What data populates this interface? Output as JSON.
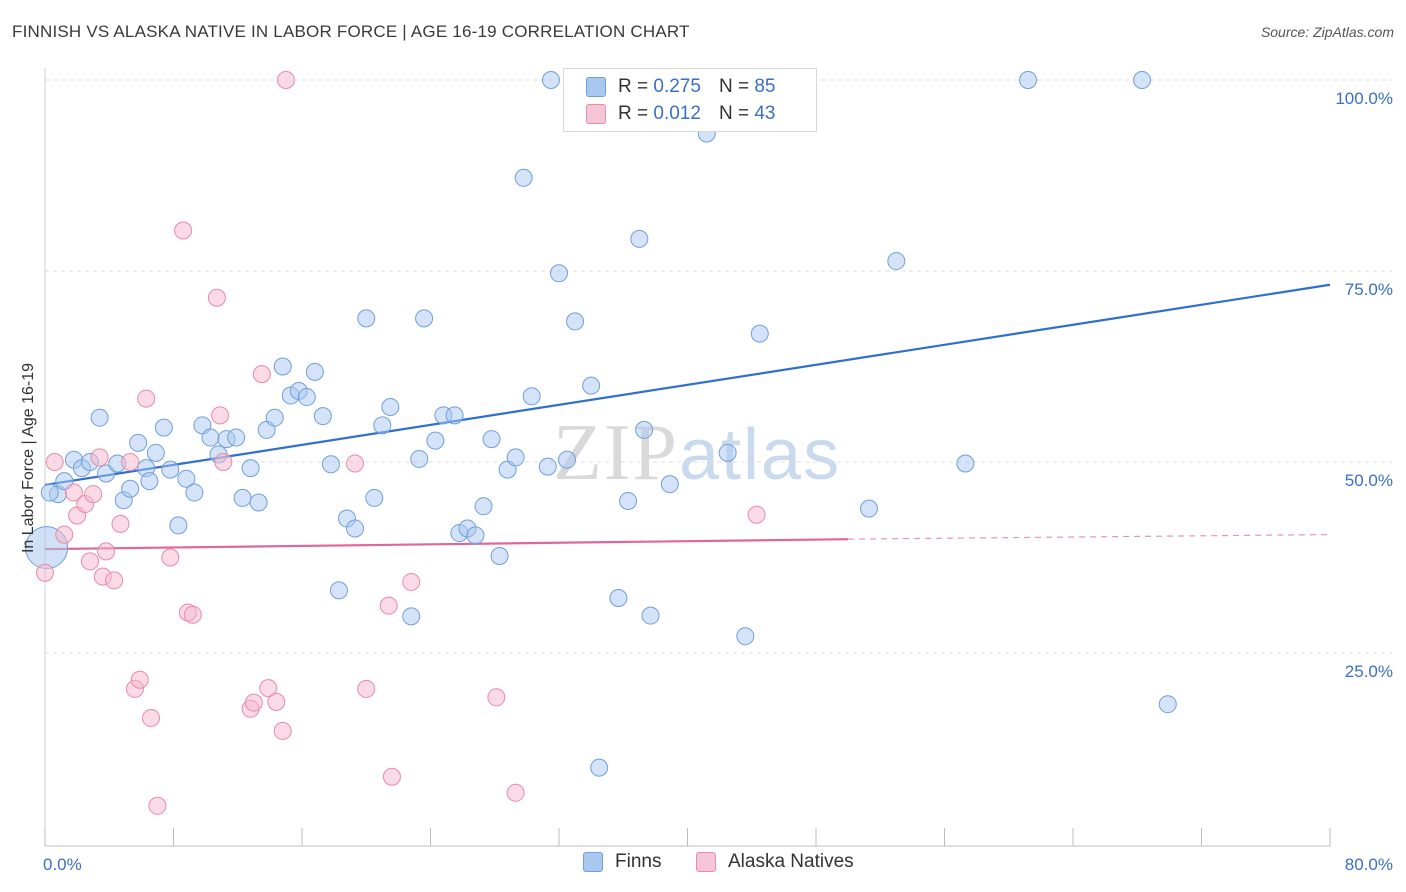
{
  "title": "FINNISH VS ALASKA NATIVE IN LABOR FORCE | AGE 16-19 CORRELATION CHART",
  "source": "Source: ZipAtlas.com",
  "watermark": {
    "zip": "ZIP",
    "atlas": "atlas"
  },
  "legend": {
    "finns": {
      "r_label": "R =",
      "r_value": "0.275",
      "n_label": "N =",
      "n_value": "85"
    },
    "alaska": {
      "r_label": "R =",
      "r_value": "0.012",
      "n_label": "N =",
      "n_value": "43"
    }
  },
  "bottom_legend": {
    "finns": "Finns",
    "alaska": "Alaska Natives"
  },
  "colors": {
    "finns_fill": "#a9c8ef",
    "finns_stroke": "#6f9fdc",
    "finns_line": "#2f6fcf",
    "alaska_fill": "#f5b8cc",
    "alaska_stroke": "#e88aa8",
    "alaska_line": "#e0679a",
    "label": "#3a6fc7",
    "grid": "#dddddd"
  },
  "chart_data": {
    "type": "scatter",
    "title": "FINNISH VS ALASKA NATIVE IN LABOR FORCE | AGE 16-19 CORRELATION CHART",
    "xlabel": "",
    "ylabel": "In Labor Force | Age 16-19",
    "xlim": [
      0,
      80
    ],
    "ylim": [
      0,
      102
    ],
    "x_tick_labels": [
      "0.0%",
      "80.0%"
    ],
    "y_ticks": [
      25,
      50,
      75,
      100
    ],
    "y_tick_labels": [
      "25.0%",
      "50.0%",
      "75.0%",
      "100.0%"
    ],
    "grid": true,
    "series": [
      {
        "name": "Finns",
        "points": [
          [
            0.8,
            45.8
          ],
          [
            1.2,
            47.5
          ],
          [
            1.8,
            50.3
          ],
          [
            2.3,
            49.2
          ],
          [
            2.8,
            50.0
          ],
          [
            3.4,
            55.8
          ],
          [
            3.8,
            48.5
          ],
          [
            4.9,
            45.0
          ],
          [
            5.3,
            46.5
          ],
          [
            5.8,
            52.5
          ],
          [
            6.3,
            49.2
          ],
          [
            6.9,
            51.2
          ],
          [
            7.4,
            54.5
          ],
          [
            7.8,
            49.0
          ],
          [
            8.3,
            41.7
          ],
          [
            8.8,
            47.8
          ],
          [
            9.3,
            46.0
          ],
          [
            9.8,
            54.8
          ],
          [
            10.3,
            53.2
          ],
          [
            10.8,
            51.0
          ],
          [
            11.3,
            53.0
          ],
          [
            11.9,
            53.2
          ],
          [
            12.3,
            45.3
          ],
          [
            12.8,
            49.2
          ],
          [
            13.3,
            44.7
          ],
          [
            13.8,
            54.2
          ],
          [
            14.3,
            55.8
          ],
          [
            14.8,
            62.5
          ],
          [
            15.3,
            58.7
          ],
          [
            15.8,
            59.3
          ],
          [
            16.3,
            58.5
          ],
          [
            16.8,
            61.8
          ],
          [
            17.3,
            56.0
          ],
          [
            17.8,
            49.7
          ],
          [
            18.3,
            33.2
          ],
          [
            18.8,
            42.6
          ],
          [
            19.3,
            41.3
          ],
          [
            20.0,
            68.8
          ],
          [
            20.5,
            45.3
          ],
          [
            21.0,
            54.8
          ],
          [
            21.5,
            57.2
          ],
          [
            22.8,
            29.8
          ],
          [
            23.3,
            50.4
          ],
          [
            23.6,
            68.8
          ],
          [
            24.3,
            52.8
          ],
          [
            24.8,
            56.1
          ],
          [
            25.5,
            56.1
          ],
          [
            25.8,
            40.7
          ],
          [
            26.3,
            41.3
          ],
          [
            26.8,
            40.4
          ],
          [
            27.3,
            44.2
          ],
          [
            27.8,
            53.0
          ],
          [
            28.3,
            37.7
          ],
          [
            28.8,
            49.0
          ],
          [
            29.3,
            50.6
          ],
          [
            29.8,
            87.2
          ],
          [
            30.3,
            58.6
          ],
          [
            31.3,
            49.4
          ],
          [
            31.5,
            100.0
          ],
          [
            32.0,
            74.7
          ],
          [
            32.5,
            50.3
          ],
          [
            33.0,
            68.4
          ],
          [
            34.0,
            60.0
          ],
          [
            34.5,
            10.0
          ],
          [
            35.7,
            32.2
          ],
          [
            36.3,
            44.9
          ],
          [
            37.0,
            79.2
          ],
          [
            37.3,
            54.2
          ],
          [
            37.7,
            29.9
          ],
          [
            38.9,
            47.1
          ],
          [
            40.0,
            100.0
          ],
          [
            41.2,
            93.0
          ],
          [
            42.5,
            51.2
          ],
          [
            43.6,
            27.2
          ],
          [
            44.5,
            66.8
          ],
          [
            51.3,
            43.9
          ],
          [
            53.0,
            76.3
          ],
          [
            57.3,
            49.8
          ],
          [
            61.2,
            100.0
          ],
          [
            68.3,
            100.0
          ],
          [
            69.9,
            18.3
          ],
          [
            0.1,
            38.8
          ],
          [
            0.3,
            46.0
          ],
          [
            4.5,
            49.8
          ],
          [
            6.5,
            47.5
          ]
        ]
      },
      {
        "name": "Alaska Natives",
        "points": [
          [
            0.0,
            35.5
          ],
          [
            0.6,
            50.0
          ],
          [
            1.2,
            40.5
          ],
          [
            1.8,
            46.0
          ],
          [
            2.0,
            43.0
          ],
          [
            2.5,
            44.5
          ],
          [
            2.8,
            37.0
          ],
          [
            3.0,
            45.8
          ],
          [
            3.4,
            50.6
          ],
          [
            3.6,
            35.0
          ],
          [
            3.8,
            38.3
          ],
          [
            4.3,
            34.5
          ],
          [
            4.7,
            41.9
          ],
          [
            5.3,
            50.0
          ],
          [
            5.6,
            20.3
          ],
          [
            5.9,
            21.5
          ],
          [
            6.3,
            58.3
          ],
          [
            6.6,
            16.5
          ],
          [
            7.0,
            5.0
          ],
          [
            7.8,
            37.5
          ],
          [
            8.6,
            80.3
          ],
          [
            8.9,
            30.3
          ],
          [
            9.2,
            30.0
          ],
          [
            10.7,
            71.5
          ],
          [
            10.9,
            56.1
          ],
          [
            11.1,
            50.0
          ],
          [
            12.8,
            17.7
          ],
          [
            13.0,
            18.5
          ],
          [
            13.5,
            61.5
          ],
          [
            13.9,
            20.4
          ],
          [
            14.4,
            18.6
          ],
          [
            14.8,
            14.8
          ],
          [
            15.0,
            100.0
          ],
          [
            19.3,
            49.8
          ],
          [
            20.0,
            20.3
          ],
          [
            21.4,
            31.2
          ],
          [
            21.6,
            8.8
          ],
          [
            22.8,
            34.3
          ],
          [
            28.1,
            19.2
          ],
          [
            29.3,
            6.7
          ],
          [
            35.5,
            100.0
          ],
          [
            44.3,
            43.1
          ],
          [
            40.5,
            100.0
          ]
        ]
      }
    ],
    "trend_lines": [
      {
        "name": "Finns",
        "x": [
          0,
          80
        ],
        "y": [
          47.0,
          73.2
        ]
      },
      {
        "name": "Alaska Natives",
        "x": [
          0,
          50
        ],
        "y": [
          38.6,
          39.9
        ],
        "dashed_to": [
          80,
          40.5
        ]
      }
    ]
  }
}
